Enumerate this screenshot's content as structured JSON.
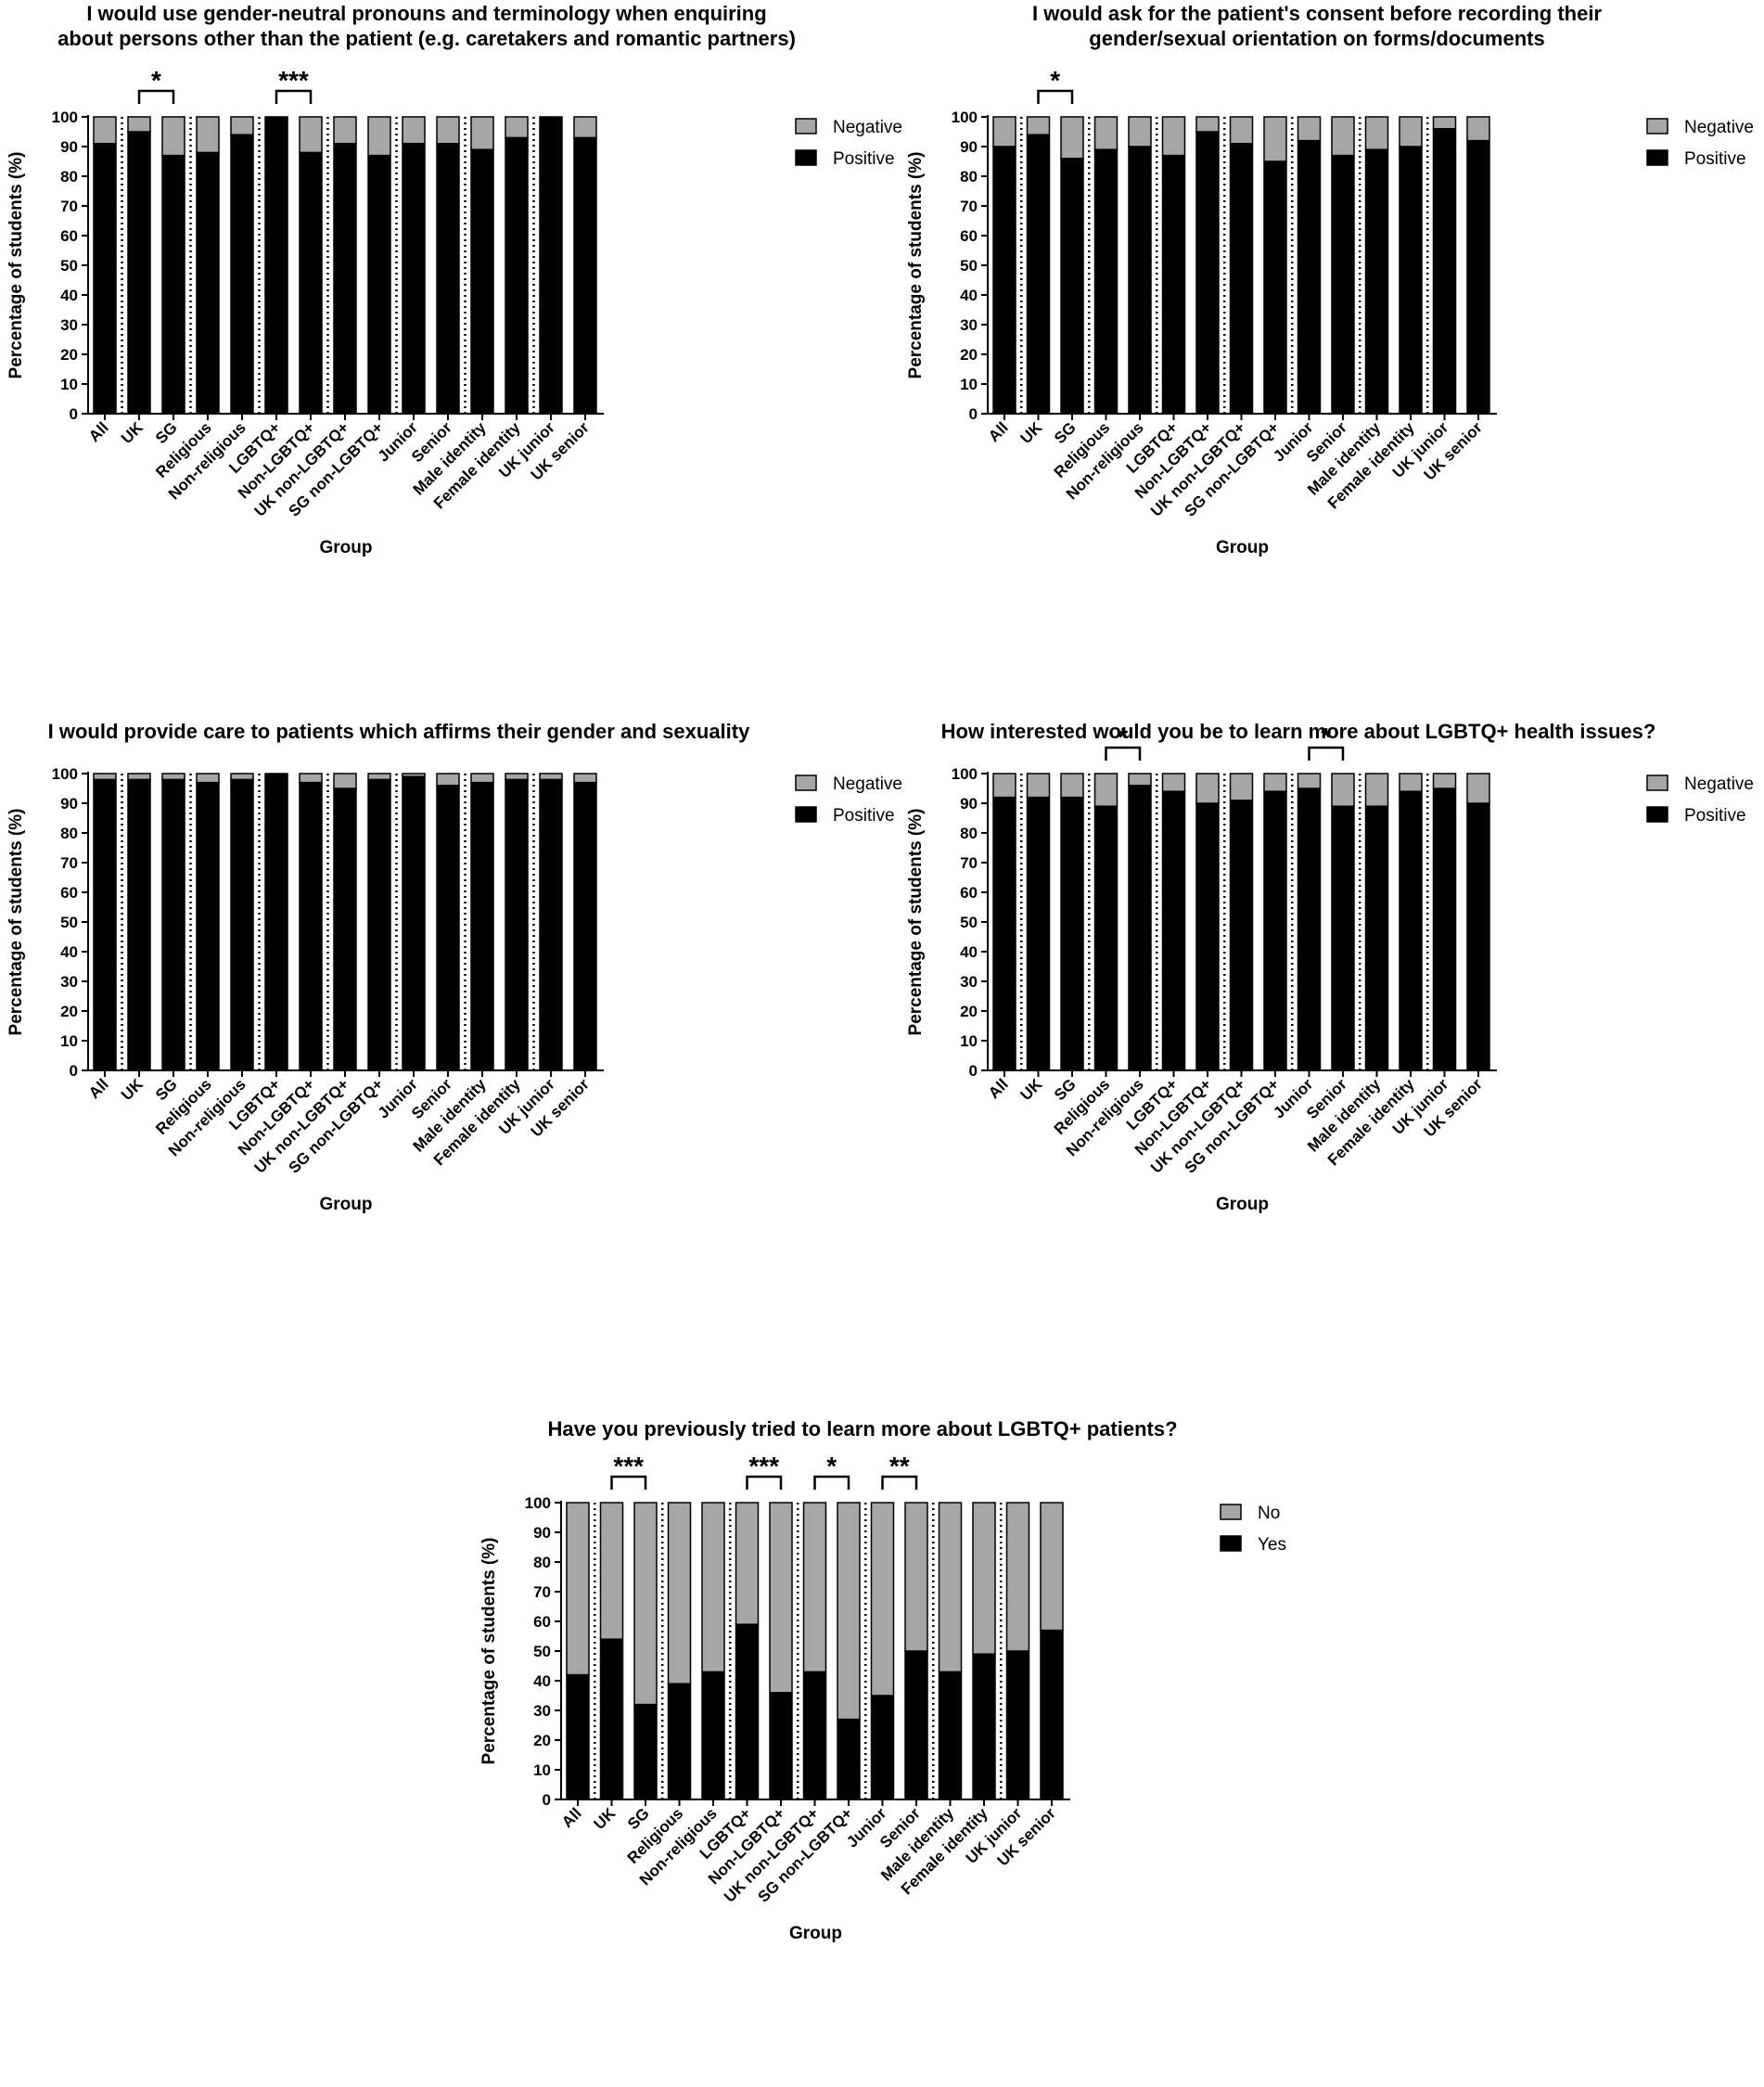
{
  "figure": {
    "colors": {
      "positive": "#000000",
      "negative": "#a6a6a6"
    },
    "group_dividers_after": [
      0,
      2,
      4,
      6,
      8,
      10,
      12
    ]
  },
  "chart_data": [
    {
      "type": "bar",
      "stacked": true,
      "title": "I would use gender-neutral pronouns and terminology when enquiring about persons other than the patient (e.g. caretakers and romantic partners)",
      "title_lines": [
        "I would use gender-neutral pronouns and terminology when enquiring",
        "about persons other than the patient (e.g. caretakers and romantic partners)"
      ],
      "xlabel": "Group",
      "ylabel": "Percentage of students (%)",
      "ylim": [
        0,
        100
      ],
      "yticks": [
        "0",
        "10",
        "20",
        "30",
        "40",
        "50",
        "60",
        "70",
        "80",
        "90",
        "100"
      ],
      "categories": [
        "All",
        "UK",
        "SG",
        "Religious",
        "Non-religious",
        "LGBTQ+",
        "Non-LGBTQ+",
        "UK non-LGBTQ+",
        "SG non-LGBTQ+",
        "Junior",
        "Senior",
        "Male identity",
        "Female identity",
        "UK junior",
        "UK senior"
      ],
      "legend": [
        "Negative",
        "Positive"
      ],
      "legend_position": "top-right",
      "series": [
        {
          "name": "Positive",
          "values": [
            91,
            95,
            87,
            88,
            94,
            100,
            88,
            91,
            87,
            91,
            91,
            89,
            93,
            100,
            93
          ]
        },
        {
          "name": "Negative",
          "values": [
            9,
            5,
            13,
            12,
            6,
            0,
            12,
            9,
            13,
            9,
            9,
            11,
            7,
            0,
            7
          ]
        }
      ],
      "significance": [
        {
          "from": 1,
          "to": 2,
          "label": "*"
        },
        {
          "from": 5,
          "to": 6,
          "label": "***"
        }
      ]
    },
    {
      "type": "bar",
      "stacked": true,
      "title": "I would ask for the patient's consent before recording their gender/sexual orientation on forms/documents",
      "title_lines": [
        "I would ask for the patient's consent before recording their",
        "gender/sexual orientation on forms/documents"
      ],
      "xlabel": "Group",
      "ylabel": "Percentage of students (%)",
      "ylim": [
        0,
        100
      ],
      "yticks": [
        "0",
        "10",
        "20",
        "30",
        "40",
        "50",
        "60",
        "70",
        "80",
        "90",
        "100"
      ],
      "categories": [
        "All",
        "UK",
        "SG",
        "Religious",
        "Non-religious",
        "LGBTQ+",
        "Non-LGBTQ+",
        "UK non-LGBTQ+",
        "SG non-LGBTQ+",
        "Junior",
        "Senior",
        "Male identity",
        "Female identity",
        "UK junior",
        "UK senior"
      ],
      "legend": [
        "Negative",
        "Positive"
      ],
      "legend_position": "top-right",
      "series": [
        {
          "name": "Positive",
          "values": [
            90,
            94,
            86,
            89,
            90,
            87,
            95,
            91,
            85,
            92,
            87,
            89,
            90,
            96,
            92
          ]
        },
        {
          "name": "Negative",
          "values": [
            10,
            6,
            14,
            11,
            10,
            13,
            5,
            9,
            15,
            8,
            13,
            11,
            10,
            4,
            8
          ]
        }
      ],
      "significance": [
        {
          "from": 1,
          "to": 2,
          "label": "*"
        }
      ]
    },
    {
      "type": "bar",
      "stacked": true,
      "title": "I would provide care to patients which affirms their gender and sexuality",
      "title_lines": [
        "I would provide care to patients which affirms their gender and sexuality"
      ],
      "xlabel": "Group",
      "ylabel": "Percentage of students (%)",
      "ylim": [
        0,
        100
      ],
      "yticks": [
        "0",
        "10",
        "20",
        "30",
        "40",
        "50",
        "60",
        "70",
        "80",
        "90",
        "100"
      ],
      "categories": [
        "All",
        "UK",
        "SG",
        "Religious",
        "Non-religious",
        "LGBTQ+",
        "Non-LGBTQ+",
        "UK non-LGBTQ+",
        "SG non-LGBTQ+",
        "Junior",
        "Senior",
        "Male identity",
        "Female identity",
        "UK junior",
        "UK senior"
      ],
      "legend": [
        "Negative",
        "Positive"
      ],
      "legend_position": "top-right",
      "series": [
        {
          "name": "Positive",
          "values": [
            98,
            98,
            98,
            97,
            98,
            100,
            97,
            95,
            98,
            99,
            96,
            97,
            98,
            98,
            97
          ]
        },
        {
          "name": "Negative",
          "values": [
            2,
            2,
            2,
            3,
            2,
            0,
            3,
            5,
            2,
            1,
            4,
            3,
            2,
            2,
            3
          ]
        }
      ],
      "significance": []
    },
    {
      "type": "bar",
      "stacked": true,
      "title": "How interested would you be to learn more about LGBTQ+ health issues?",
      "title_lines": [
        "How interested would you be to learn more about LGBTQ+ health issues?"
      ],
      "xlabel": "Group",
      "ylabel": "Percentage of students (%)",
      "ylim": [
        0,
        100
      ],
      "yticks": [
        "0",
        "10",
        "20",
        "30",
        "40",
        "50",
        "60",
        "70",
        "80",
        "90",
        "100"
      ],
      "categories": [
        "All",
        "UK",
        "SG",
        "Religious",
        "Non-religious",
        "LGBTQ+",
        "Non-LGBTQ+",
        "UK non-LGBTQ+",
        "SG non-LGBTQ+",
        "Junior",
        "Senior",
        "Male identity",
        "Female identity",
        "UK junior",
        "UK senior"
      ],
      "legend": [
        "Negative",
        "Positive"
      ],
      "legend_position": "top-right",
      "series": [
        {
          "name": "Positive",
          "values": [
            92,
            92,
            92,
            89,
            96,
            94,
            90,
            91,
            94,
            95,
            89,
            89,
            94,
            95,
            90
          ]
        },
        {
          "name": "Negative",
          "values": [
            8,
            8,
            8,
            11,
            4,
            6,
            10,
            9,
            6,
            5,
            11,
            11,
            6,
            5,
            10
          ]
        }
      ],
      "significance": [
        {
          "from": 3,
          "to": 4,
          "label": "*"
        },
        {
          "from": 9,
          "to": 10,
          "label": "*"
        }
      ]
    },
    {
      "type": "bar",
      "stacked": true,
      "title": "Have you previously tried to learn more about LGBTQ+ patients?",
      "title_lines": [
        "Have you previously tried to learn more about LGBTQ+ patients?"
      ],
      "xlabel": "Group",
      "ylabel": "Percentage of students (%)",
      "ylim": [
        0,
        100
      ],
      "yticks": [
        "0",
        "10",
        "20",
        "30",
        "40",
        "50",
        "60",
        "70",
        "80",
        "90",
        "100"
      ],
      "categories": [
        "All",
        "UK",
        "SG",
        "Religious",
        "Non-religious",
        "LGBTQ+",
        "Non-LGBTQ+",
        "UK non-LGBTQ+",
        "SG non-LGBTQ+",
        "Junior",
        "Senior",
        "Male identity",
        "Female identity",
        "UK junior",
        "UK senior"
      ],
      "legend": [
        "No",
        "Yes"
      ],
      "legend_position": "top-right",
      "series": [
        {
          "name": "Yes",
          "values": [
            42,
            54,
            32,
            39,
            43,
            59,
            36,
            43,
            27,
            35,
            50,
            43,
            49,
            50,
            57
          ]
        },
        {
          "name": "No",
          "values": [
            58,
            46,
            68,
            61,
            57,
            41,
            64,
            57,
            73,
            65,
            50,
            57,
            51,
            50,
            43
          ]
        }
      ],
      "significance": [
        {
          "from": 1,
          "to": 2,
          "label": "***"
        },
        {
          "from": 5,
          "to": 6,
          "label": "***"
        },
        {
          "from": 7,
          "to": 8,
          "label": "*"
        },
        {
          "from": 9,
          "to": 10,
          "label": "**"
        }
      ]
    }
  ]
}
